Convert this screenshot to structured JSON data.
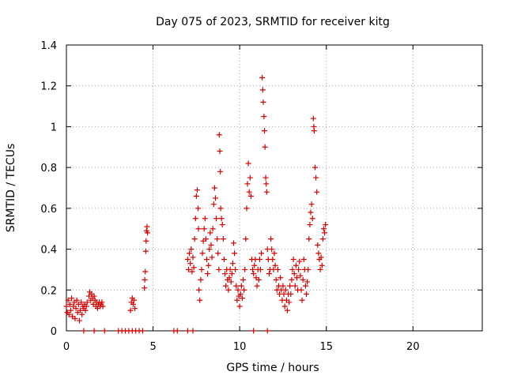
{
  "chart_data": {
    "type": "scatter",
    "title": "Day 075 of 2023, SRMTID for receiver kitg",
    "xlabel": "GPS time / hours",
    "ylabel": "SRMTID / TECUs",
    "xlim": [
      0,
      24
    ],
    "ylim": [
      0,
      1.4
    ],
    "xticks": [
      0,
      5,
      10,
      15,
      20
    ],
    "xtick_labels": [
      "0",
      "5",
      "10",
      "15",
      "20"
    ],
    "yticks": [
      0,
      0.2,
      0.4,
      0.6,
      0.8,
      1.0,
      1.2,
      1.4
    ],
    "ytick_labels": [
      "0",
      "0.2",
      "0.4",
      "0.6",
      "0.8",
      "1",
      "1.2",
      "1.4"
    ],
    "grid": true,
    "series_color": "#d40000",
    "series": [
      {
        "name": "SRMTID",
        "points": [
          [
            0.0,
            0.12
          ],
          [
            0.05,
            0.09
          ],
          [
            0.1,
            0.15
          ],
          [
            0.15,
            0.08
          ],
          [
            0.2,
            0.13
          ],
          [
            0.25,
            0.1
          ],
          [
            0.3,
            0.16
          ],
          [
            0.35,
            0.07
          ],
          [
            0.4,
            0.12
          ],
          [
            0.45,
            0.14
          ],
          [
            0.5,
            0.06
          ],
          [
            0.55,
            0.11
          ],
          [
            0.6,
            0.15
          ],
          [
            0.65,
            0.09
          ],
          [
            0.7,
            0.13
          ],
          [
            0.75,
            0.05
          ],
          [
            0.8,
            0.1
          ],
          [
            0.85,
            0.14
          ],
          [
            0.9,
            0.08
          ],
          [
            0.95,
            0.12
          ],
          [
            1.0,
            0.11
          ],
          [
            1.05,
            0.13
          ],
          [
            1.1,
            0.1
          ],
          [
            1.15,
            0.12
          ],
          [
            1.2,
            0.14
          ],
          [
            1.3,
            0.17
          ],
          [
            1.35,
            0.19
          ],
          [
            1.4,
            0.15
          ],
          [
            1.45,
            0.18
          ],
          [
            1.5,
            0.16
          ],
          [
            1.55,
            0.13
          ],
          [
            1.6,
            0.17
          ],
          [
            1.65,
            0.15
          ],
          [
            1.7,
            0.12
          ],
          [
            1.75,
            0.14
          ],
          [
            1.8,
            0.11
          ],
          [
            1.85,
            0.13
          ],
          [
            1.9,
            0.14
          ],
          [
            1.95,
            0.12
          ],
          [
            2.0,
            0.13
          ],
          [
            2.05,
            0.14
          ],
          [
            2.1,
            0.12
          ],
          [
            3.7,
            0.1
          ],
          [
            3.75,
            0.14
          ],
          [
            3.8,
            0.16
          ],
          [
            3.85,
            0.13
          ],
          [
            3.9,
            0.15
          ],
          [
            3.95,
            0.11
          ],
          [
            4.5,
            0.21
          ],
          [
            4.52,
            0.25
          ],
          [
            4.55,
            0.29
          ],
          [
            4.58,
            0.39
          ],
          [
            4.6,
            0.44
          ],
          [
            4.62,
            0.49
          ],
          [
            4.65,
            0.51
          ],
          [
            4.68,
            0.48
          ],
          [
            7.0,
            0.35
          ],
          [
            7.05,
            0.3
          ],
          [
            7.1,
            0.38
          ],
          [
            7.15,
            0.33
          ],
          [
            7.2,
            0.4
          ],
          [
            7.25,
            0.29
          ],
          [
            7.3,
            0.36
          ],
          [
            7.35,
            0.31
          ],
          [
            7.4,
            0.45
          ],
          [
            7.45,
            0.55
          ],
          [
            7.5,
            0.66
          ],
          [
            7.55,
            0.69
          ],
          [
            7.6,
            0.6
          ],
          [
            7.62,
            0.5
          ],
          [
            7.65,
            0.2
          ],
          [
            7.7,
            0.15
          ],
          [
            7.75,
            0.25
          ],
          [
            7.8,
            0.3
          ],
          [
            7.85,
            0.38
          ],
          [
            7.9,
            0.44
          ],
          [
            7.95,
            0.5
          ],
          [
            8.0,
            0.55
          ],
          [
            8.05,
            0.45
          ],
          [
            8.1,
            0.35
          ],
          [
            8.15,
            0.28
          ],
          [
            8.2,
            0.32
          ],
          [
            8.25,
            0.4
          ],
          [
            8.3,
            0.48
          ],
          [
            8.35,
            0.42
          ],
          [
            8.4,
            0.36
          ],
          [
            8.45,
            0.5
          ],
          [
            8.5,
            0.62
          ],
          [
            8.55,
            0.7
          ],
          [
            8.6,
            0.65
          ],
          [
            8.65,
            0.55
          ],
          [
            8.7,
            0.45
          ],
          [
            8.75,
            0.38
          ],
          [
            8.8,
            0.3
          ],
          [
            8.82,
            0.96
          ],
          [
            8.85,
            0.88
          ],
          [
            8.88,
            0.78
          ],
          [
            8.9,
            0.6
          ],
          [
            8.95,
            0.55
          ],
          [
            9.0,
            0.52
          ],
          [
            9.05,
            0.45
          ],
          [
            9.1,
            0.35
          ],
          [
            9.15,
            0.28
          ],
          [
            9.2,
            0.22
          ],
          [
            9.25,
            0.3
          ],
          [
            9.3,
            0.25
          ],
          [
            9.35,
            0.2
          ],
          [
            9.4,
            0.26
          ],
          [
            9.45,
            0.3
          ],
          [
            9.5,
            0.24
          ],
          [
            9.55,
            0.28
          ],
          [
            9.6,
            0.33
          ],
          [
            9.65,
            0.43
          ],
          [
            9.7,
            0.38
          ],
          [
            9.75,
            0.3
          ],
          [
            9.8,
            0.22
          ],
          [
            9.85,
            0.15
          ],
          [
            9.9,
            0.2
          ],
          [
            9.95,
            0.17
          ],
          [
            10.0,
            0.12
          ],
          [
            10.05,
            0.18
          ],
          [
            10.1,
            0.22
          ],
          [
            10.15,
            0.16
          ],
          [
            10.2,
            0.25
          ],
          [
            10.25,
            0.2
          ],
          [
            10.3,
            0.3
          ],
          [
            10.35,
            0.45
          ],
          [
            10.4,
            0.6
          ],
          [
            10.45,
            0.72
          ],
          [
            10.5,
            0.82
          ],
          [
            10.55,
            0.68
          ],
          [
            10.6,
            0.75
          ],
          [
            10.65,
            0.66
          ],
          [
            10.7,
            0.35
          ],
          [
            10.75,
            0.3
          ],
          [
            10.8,
            0.28
          ],
          [
            10.85,
            0.32
          ],
          [
            10.9,
            0.35
          ],
          [
            10.95,
            0.26
          ],
          [
            11.0,
            0.22
          ],
          [
            11.05,
            0.3
          ],
          [
            11.1,
            0.25
          ],
          [
            11.15,
            0.35
          ],
          [
            11.2,
            0.3
          ],
          [
            11.25,
            0.38
          ],
          [
            11.3,
            1.24
          ],
          [
            11.33,
            1.18
          ],
          [
            11.36,
            1.12
          ],
          [
            11.4,
            1.05
          ],
          [
            11.43,
            0.98
          ],
          [
            11.46,
            0.9
          ],
          [
            11.5,
            0.75
          ],
          [
            11.53,
            0.72
          ],
          [
            11.56,
            0.68
          ],
          [
            11.6,
            0.4
          ],
          [
            11.65,
            0.35
          ],
          [
            11.7,
            0.28
          ],
          [
            11.75,
            0.3
          ],
          [
            11.8,
            0.45
          ],
          [
            11.85,
            0.4
          ],
          [
            11.9,
            0.35
          ],
          [
            11.95,
            0.3
          ],
          [
            12.0,
            0.38
          ],
          [
            12.05,
            0.32
          ],
          [
            12.1,
            0.25
          ],
          [
            12.15,
            0.2
          ],
          [
            12.2,
            0.3
          ],
          [
            12.25,
            0.22
          ],
          [
            12.3,
            0.18
          ],
          [
            12.35,
            0.26
          ],
          [
            12.4,
            0.2
          ],
          [
            12.45,
            0.15
          ],
          [
            12.5,
            0.22
          ],
          [
            12.55,
            0.18
          ],
          [
            12.6,
            0.12
          ],
          [
            12.65,
            0.2
          ],
          [
            12.7,
            0.15
          ],
          [
            12.75,
            0.1
          ],
          [
            12.8,
            0.18
          ],
          [
            12.85,
            0.14
          ],
          [
            12.9,
            0.22
          ],
          [
            12.95,
            0.18
          ],
          [
            13.0,
            0.25
          ],
          [
            13.05,
            0.3
          ],
          [
            13.1,
            0.35
          ],
          [
            13.15,
            0.28
          ],
          [
            13.2,
            0.22
          ],
          [
            13.25,
            0.32
          ],
          [
            13.3,
            0.26
          ],
          [
            13.35,
            0.2
          ],
          [
            13.4,
            0.3
          ],
          [
            13.45,
            0.34
          ],
          [
            13.5,
            0.27
          ],
          [
            13.55,
            0.2
          ],
          [
            13.6,
            0.15
          ],
          [
            13.65,
            0.25
          ],
          [
            13.7,
            0.35
          ],
          [
            13.75,
            0.3
          ],
          [
            13.8,
            0.22
          ],
          [
            13.85,
            0.18
          ],
          [
            13.9,
            0.24
          ],
          [
            13.95,
            0.3
          ],
          [
            14.0,
            0.45
          ],
          [
            14.05,
            0.52
          ],
          [
            14.1,
            0.58
          ],
          [
            14.15,
            0.62
          ],
          [
            14.2,
            0.55
          ],
          [
            14.25,
            1.04
          ],
          [
            14.28,
            1.0
          ],
          [
            14.3,
            0.98
          ],
          [
            14.35,
            0.8
          ],
          [
            14.4,
            0.75
          ],
          [
            14.45,
            0.68
          ],
          [
            14.5,
            0.42
          ],
          [
            14.55,
            0.38
          ],
          [
            14.6,
            0.35
          ],
          [
            14.65,
            0.3
          ],
          [
            14.7,
            0.36
          ],
          [
            14.75,
            0.32
          ],
          [
            14.8,
            0.45
          ],
          [
            14.85,
            0.5
          ],
          [
            14.9,
            0.48
          ],
          [
            14.95,
            0.52
          ],
          [
            1.0,
            0.0
          ],
          [
            1.6,
            0.0
          ],
          [
            2.2,
            0.0
          ],
          [
            3.0,
            0.0
          ],
          [
            3.2,
            0.0
          ],
          [
            3.4,
            0.0
          ],
          [
            3.6,
            0.0
          ],
          [
            3.8,
            0.0
          ],
          [
            4.0,
            0.0
          ],
          [
            4.2,
            0.0
          ],
          [
            4.4,
            0.0
          ],
          [
            6.2,
            0.0
          ],
          [
            6.4,
            0.0
          ],
          [
            7.0,
            0.0
          ],
          [
            7.3,
            0.0
          ],
          [
            10.8,
            0.0
          ],
          [
            11.6,
            0.0
          ]
        ]
      }
    ]
  }
}
